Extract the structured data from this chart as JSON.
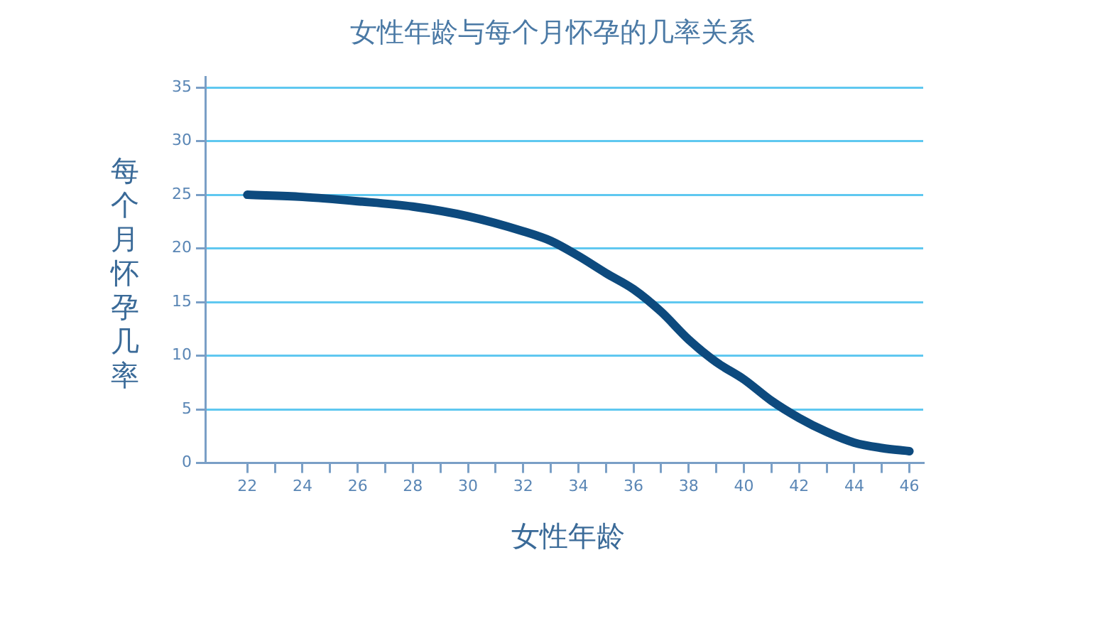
{
  "chart_data": {
    "type": "line",
    "title": "女性年龄与每个月怀孕的几率关系",
    "xlabel": "女性年龄",
    "ylabel": "每个月怀孕几率",
    "x": [
      22,
      24,
      26,
      28,
      30,
      32,
      33,
      34,
      35,
      36,
      37,
      38,
      39,
      40,
      41,
      42,
      43,
      44,
      45,
      46
    ],
    "series": [
      {
        "color": "#0d4a7e",
        "values": [
          25,
          24.8,
          24.4,
          23.9,
          23,
          21.6,
          20.7,
          19.3,
          17.7,
          16.2,
          14.1,
          11.5,
          9.4,
          7.8,
          5.8,
          4.2,
          2.9,
          1.9,
          1.4,
          1.1
        ]
      }
    ],
    "xlim": [
      20.5,
      46.5
    ],
    "xticks": [
      22,
      {
        "value": 23,
        "label": null
      },
      24,
      {
        "value": 25,
        "label": null
      },
      26,
      {
        "value": 27,
        "label": null
      },
      28,
      {
        "value": 29,
        "label": null
      },
      30,
      {
        "value": 31,
        "label": null
      },
      32,
      {
        "value": 33,
        "label": null
      },
      34,
      {
        "value": 35,
        "label": null
      },
      36,
      {
        "value": 37,
        "label": null
      },
      38,
      {
        "value": 39,
        "label": null
      },
      40,
      {
        "value": 41,
        "label": null
      },
      42,
      {
        "value": 43,
        "label": null
      },
      44,
      {
        "value": 45,
        "label": null
      },
      46
    ],
    "ylim": [
      0,
      36
    ],
    "yticks": [
      0,
      5,
      10,
      15,
      20,
      25,
      30,
      35
    ],
    "grid": "y",
    "legend": false,
    "marker": "none",
    "line_style": "solid"
  }
}
